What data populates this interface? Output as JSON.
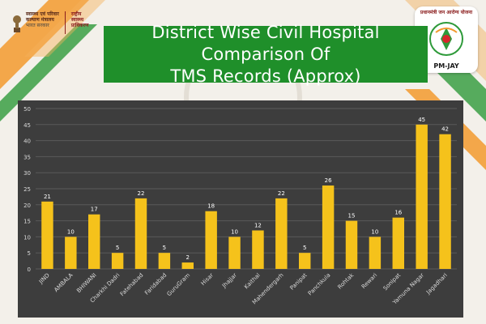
{
  "header": {
    "ministry_line1": "स्वास्थ्य एवं परिवार",
    "ministry_line2": "कल्याण मंत्रालय",
    "ministry_line3": "भारत सरकार",
    "authority_line1": "राष्ट्रीय",
    "authority_line2": "स्वास्थ्य",
    "authority_line3": "प्राधिकरण",
    "pm_logo_arc": "प्रधानमंत्री जन आरोग्य योजना",
    "pm_logo_label": "PM-JAY",
    "title_line1": "District Wise Civil Hospital Comparison Of",
    "title_line2": "TMS Records (Approx)"
  },
  "colors": {
    "title_bg": "#1f8f2a",
    "panel_bg": "#3d3d3d",
    "bar": "#f5c21b",
    "saffron": "#f29a2e",
    "green": "#2e9a3a"
  },
  "chart_data": {
    "type": "bar",
    "title": "District Wise Civil Hospital Comparison Of TMS Records (Approx)",
    "categories": [
      "JIND",
      "AMBALA",
      "BHIWANI",
      "Charkhi Dadri",
      "Fatehabad",
      "Faridabad",
      "GuruGram",
      "Hisar",
      "Jhajjar",
      "Kaithal",
      "Mahendergarh",
      "Panipat",
      "Panchkula",
      "Rohtak",
      "Rewari",
      "Sonipat",
      "Yamuna Nagar",
      "Jagadhari"
    ],
    "values": [
      21,
      10,
      17,
      5,
      22,
      5,
      2,
      18,
      10,
      12,
      22,
      5,
      26,
      15,
      10,
      16,
      45,
      42
    ],
    "ylim": [
      0,
      50
    ],
    "yticks": [
      0,
      5,
      10,
      15,
      20,
      25,
      30,
      35,
      40,
      45,
      50
    ],
    "grid": true,
    "data_labels": true,
    "legend": "none"
  }
}
